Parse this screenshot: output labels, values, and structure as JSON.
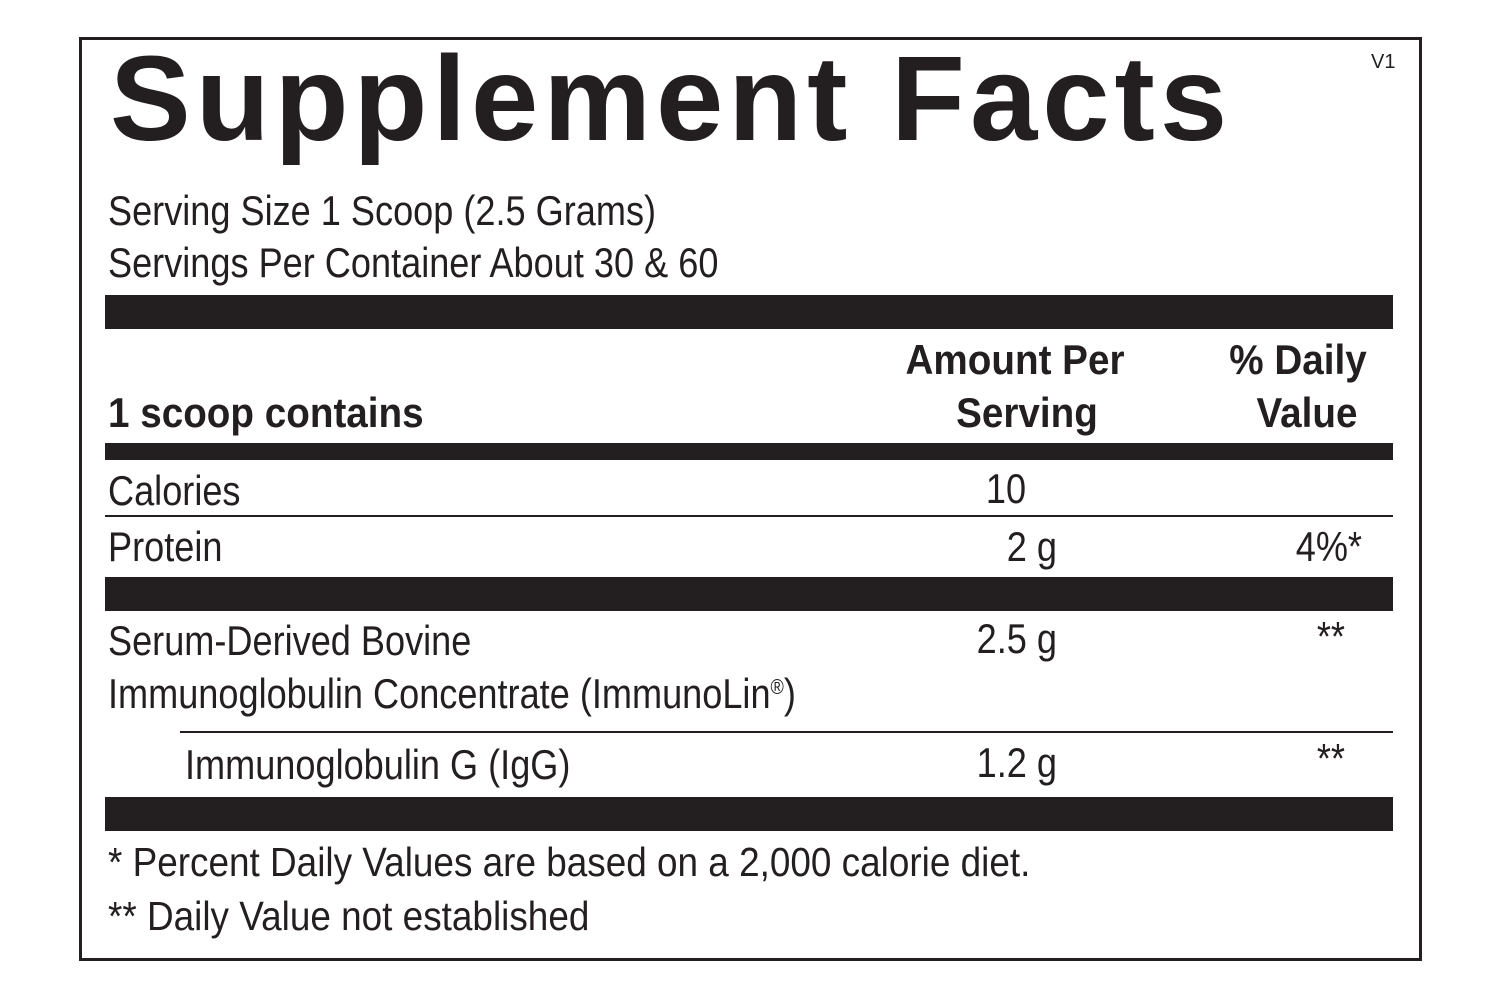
{
  "label": {
    "title": "Supplement Facts",
    "version": "V1",
    "serving_size": "Serving Size 1 Scoop (2.5 Grams)",
    "servings_per_container": "Servings Per Container About 30 & 60",
    "header": {
      "contains": "1 scoop contains",
      "amount_line1": "Amount Per",
      "amount_line2": "Serving",
      "dv_line1": "% Daily",
      "dv_line2": "Value"
    },
    "rows": [
      {
        "name": "Calories",
        "amount": "10",
        "dv": ""
      },
      {
        "name": "Protein",
        "amount": "2 g",
        "dv": "4%*"
      },
      {
        "name_line1": "Serum-Derived Bovine",
        "name_line2": "Immunoglobulin Concentrate (ImmunoLin",
        "name_suffix": "®",
        "name_close": ")",
        "amount": "2.5 g",
        "dv": "**"
      },
      {
        "name": "Immunoglobulin G (IgG)",
        "amount": "1.2 g",
        "dv": "**"
      }
    ],
    "footnotes": [
      "* Percent Daily Values are based on a 2,000 calorie diet.",
      "** Daily Value not established"
    ],
    "colors": {
      "ink": "#231f20",
      "background": "#ffffff"
    }
  }
}
